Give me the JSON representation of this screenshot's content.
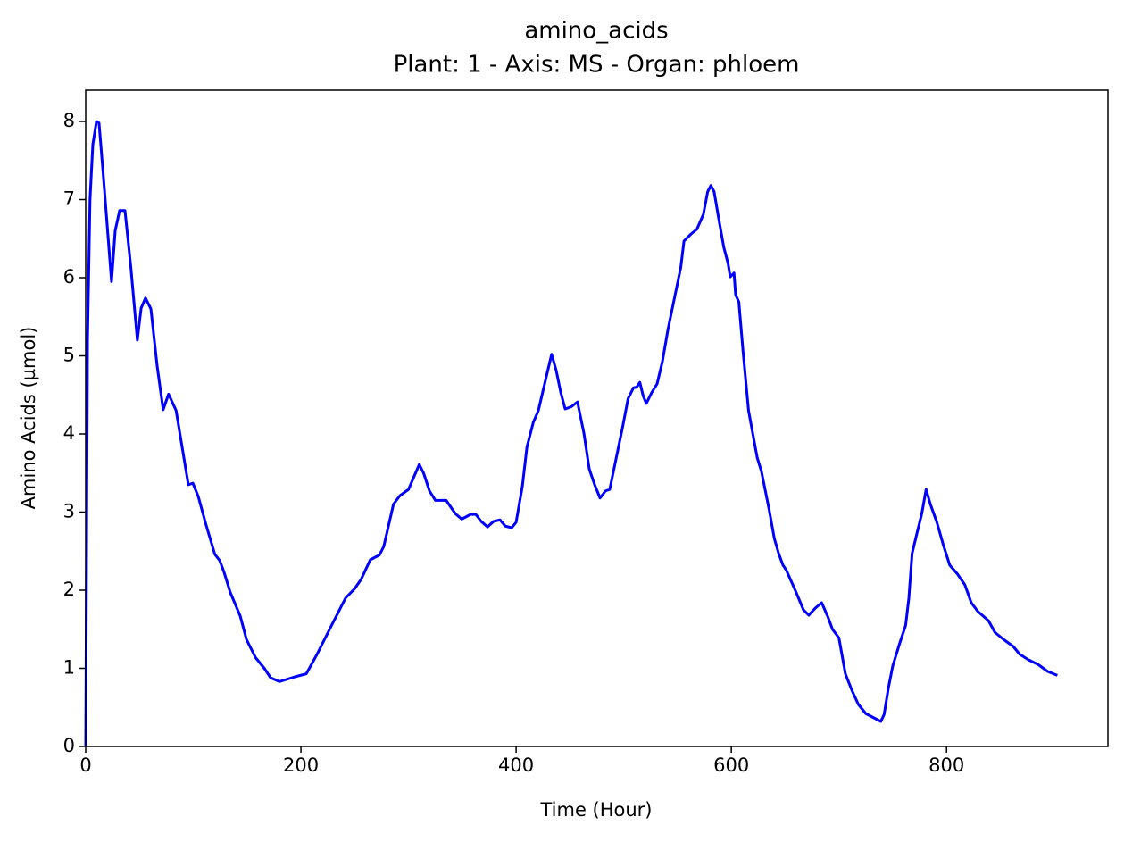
{
  "chart_data": {
    "type": "line",
    "title": "amino_acids",
    "subtitle": "Plant: 1 - Axis: MS - Organ: phloem",
    "x_label": "Time (Hour)",
    "y_label": "Amino Acids (µmol)",
    "x": [
      0,
      1.7,
      4,
      6.6,
      10,
      12.4,
      16.6,
      24,
      27.4,
      31.5,
      36.5,
      42,
      48,
      51.5,
      55.6,
      60.6,
      66.4,
      72,
      77,
      84,
      95.4,
      99.6,
      104.6,
      112,
      120,
      124.5,
      128.6,
      134.4,
      143.6,
      149.4,
      157.7,
      166,
      171.8,
      180,
      194,
      205,
      215,
      227.4,
      241.5,
      250,
      256,
      264.5,
      273,
      277,
      286,
      292,
      300,
      310,
      314,
      319.5,
      325,
      335,
      343.5,
      349.4,
      357.7,
      362.6,
      367.6,
      373.4,
      379,
      385,
      390,
      396,
      400,
      405.8,
      410,
      416,
      420.7,
      428,
      433,
      437.3,
      441.5,
      445.6,
      451.5,
      457,
      463,
      468,
      473,
      478,
      483,
      487,
      493,
      499,
      504,
      509,
      512,
      515,
      518,
      521,
      526,
      531,
      536,
      541,
      547,
      553,
      556,
      562.6,
      568,
      574,
      578,
      581,
      584,
      589,
      593,
      597,
      599,
      602.5,
      604,
      607,
      611,
      616,
      624,
      628,
      635,
      640,
      644,
      648,
      651,
      660,
      667,
      672,
      678,
      684,
      690,
      694,
      700,
      706,
      712,
      718,
      725,
      732,
      739,
      742,
      746,
      750,
      756,
      762,
      765,
      768,
      772,
      777,
      781,
      785,
      791,
      797,
      803,
      810,
      817,
      823,
      829,
      839,
      845,
      853,
      862,
      868,
      876,
      885,
      894,
      903
    ],
    "series": [
      {
        "name": "amino_acids",
        "color": "#0000ff",
        "values": [
          0,
          5.2,
          7.0,
          7.7,
          8.0,
          7.98,
          7.27,
          5.95,
          6.6,
          6.86,
          6.86,
          6.13,
          5.2,
          5.61,
          5.74,
          5.6,
          4.87,
          4.31,
          4.51,
          4.3,
          3.35,
          3.37,
          3.2,
          2.83,
          2.46,
          2.38,
          2.23,
          1.97,
          1.67,
          1.37,
          1.14,
          1.0,
          0.88,
          0.83,
          0.89,
          0.93,
          1.18,
          1.52,
          1.9,
          2.02,
          2.14,
          2.39,
          2.45,
          2.56,
          3.1,
          3.21,
          3.29,
          3.61,
          3.5,
          3.27,
          3.15,
          3.15,
          2.98,
          2.91,
          2.97,
          2.97,
          2.88,
          2.81,
          2.88,
          2.9,
          2.82,
          2.8,
          2.87,
          3.33,
          3.83,
          4.15,
          4.3,
          4.73,
          5.02,
          4.81,
          4.53,
          4.32,
          4.35,
          4.41,
          4.01,
          3.55,
          3.35,
          3.18,
          3.27,
          3.29,
          3.69,
          4.09,
          4.45,
          4.59,
          4.6,
          4.66,
          4.49,
          4.39,
          4.53,
          4.64,
          4.93,
          5.33,
          5.73,
          6.13,
          6.47,
          6.56,
          6.62,
          6.81,
          7.1,
          7.18,
          7.1,
          6.7,
          6.39,
          6.18,
          6.01,
          6.06,
          5.78,
          5.69,
          5.04,
          4.3,
          3.7,
          3.52,
          3.04,
          2.66,
          2.47,
          2.32,
          2.26,
          1.98,
          1.75,
          1.68,
          1.77,
          1.84,
          1.65,
          1.5,
          1.39,
          0.93,
          0.72,
          0.54,
          0.42,
          0.37,
          0.32,
          0.41,
          0.75,
          1.03,
          1.3,
          1.55,
          1.9,
          2.47,
          2.7,
          2.98,
          3.29,
          3.1,
          2.87,
          2.58,
          2.32,
          2.21,
          2.07,
          1.84,
          1.73,
          1.61,
          1.46,
          1.37,
          1.28,
          1.18,
          1.11,
          1.05,
          0.96,
          0.91
        ]
      }
    ],
    "xlim": [
      0,
      950
    ],
    "xticks": [
      0,
      200,
      400,
      600,
      800
    ],
    "ylim": [
      0,
      8.4
    ],
    "yticks": [
      0,
      1,
      2,
      3,
      4,
      5,
      6,
      7,
      8
    ],
    "grid": false
  }
}
